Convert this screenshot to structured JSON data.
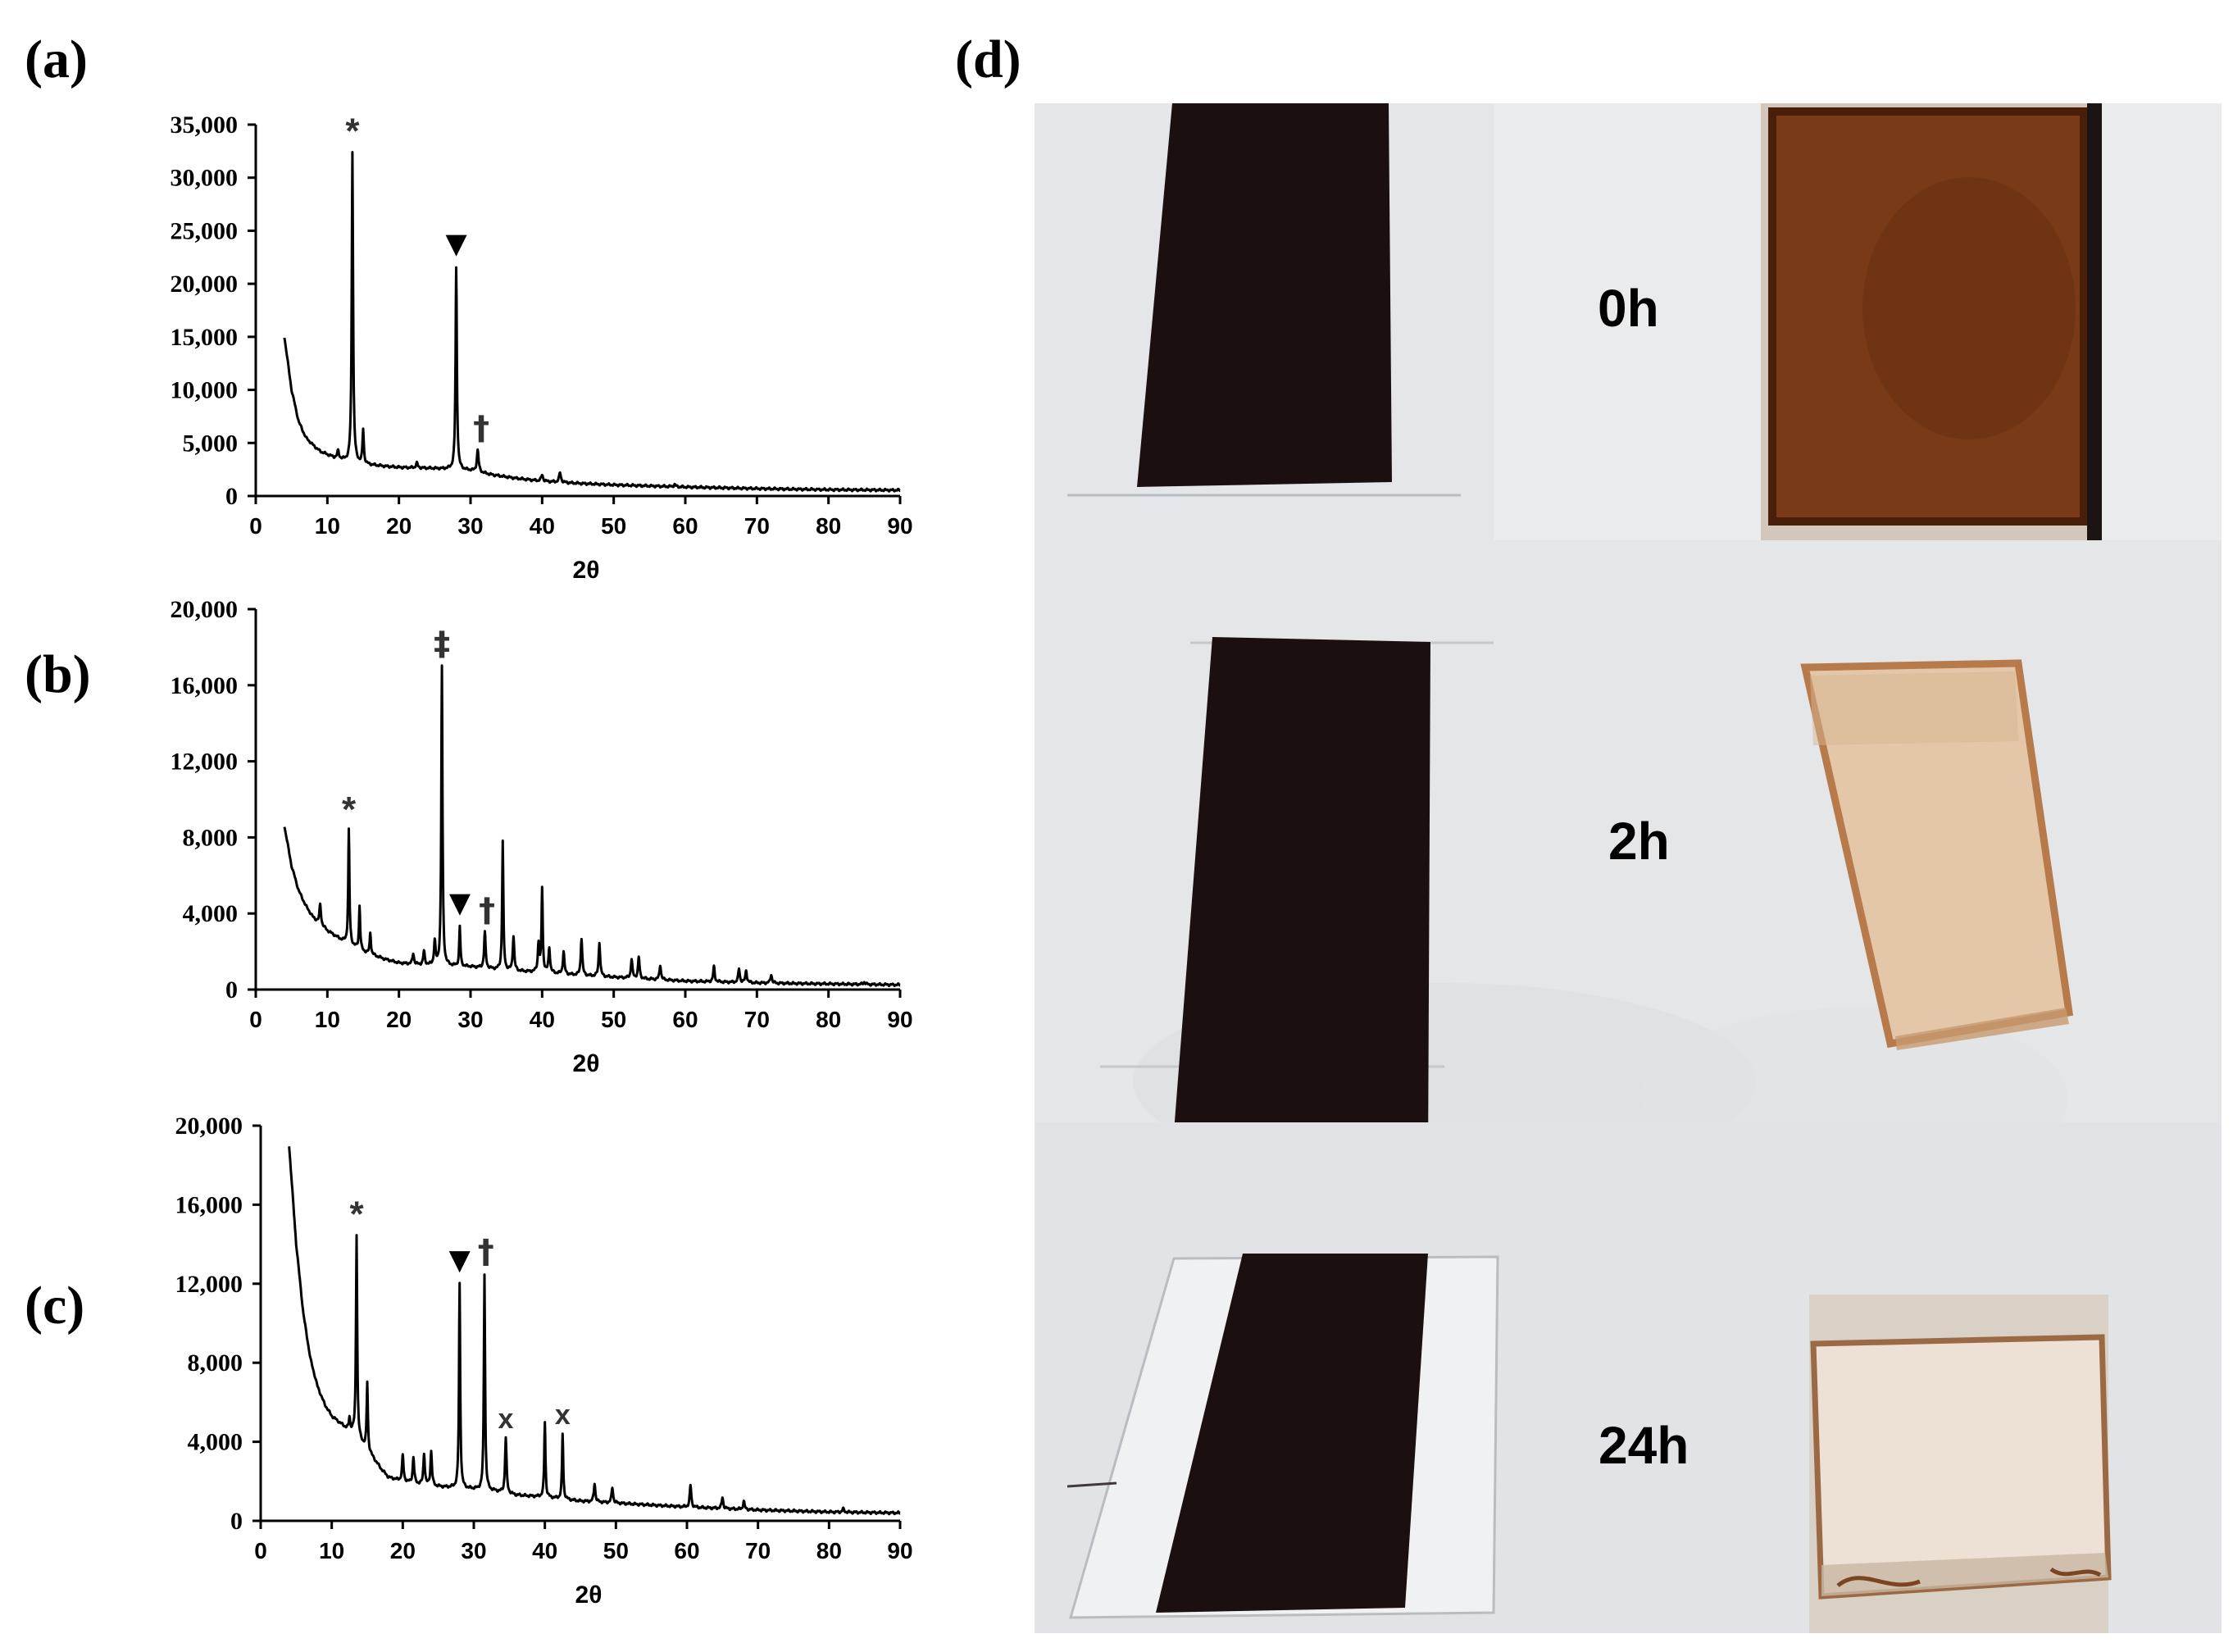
{
  "panel_labels": {
    "a": "(a)",
    "b": "(b)",
    "c": "(c)",
    "d": "(d)"
  },
  "chart_data": [
    {
      "id": "a",
      "type": "line",
      "xlabel": "2θ",
      "ylabel": "",
      "xlim": [
        0,
        90
      ],
      "ylim": [
        0,
        35000
      ],
      "xticks": [
        "0",
        "10",
        "20",
        "30",
        "40",
        "50",
        "60",
        "70",
        "80",
        "90"
      ],
      "yticks": [
        "0",
        "5,000",
        "10,000",
        "15,000",
        "20,000",
        "25,000",
        "30,000",
        "35,000"
      ],
      "yticks_values": [
        0,
        5000,
        10000,
        15000,
        20000,
        25000,
        30000,
        35000
      ],
      "grid": false,
      "line_color": "#000000",
      "baseline": [
        [
          4,
          15000
        ],
        [
          5,
          10000
        ],
        [
          6,
          7000
        ],
        [
          7,
          5500
        ],
        [
          8,
          4800
        ],
        [
          9,
          4200
        ],
        [
          10,
          3900
        ],
        [
          11,
          3600
        ],
        [
          12,
          3400
        ],
        [
          13,
          3200
        ],
        [
          15,
          3000
        ],
        [
          18,
          2800
        ],
        [
          20,
          2700
        ],
        [
          25,
          2600
        ],
        [
          28,
          2500
        ],
        [
          30,
          2400
        ],
        [
          33,
          2000
        ],
        [
          36,
          1700
        ],
        [
          40,
          1400
        ],
        [
          45,
          1200
        ],
        [
          50,
          1050
        ],
        [
          55,
          950
        ],
        [
          60,
          850
        ],
        [
          70,
          700
        ],
        [
          80,
          600
        ],
        [
          90,
          550
        ]
      ],
      "peaks": [
        [
          11.5,
          4200,
          0.3
        ],
        [
          13.5,
          32500,
          0.22
        ],
        [
          15,
          6200,
          0.22
        ],
        [
          22.5,
          3100,
          0.3
        ],
        [
          28,
          21500,
          0.22
        ],
        [
          31,
          4300,
          0.3
        ],
        [
          40,
          2000,
          0.3
        ],
        [
          42.5,
          2200,
          0.3
        ],
        [
          58.5,
          1100,
          0.3
        ]
      ],
      "annotations": [
        {
          "text": "*",
          "x": 13.5,
          "y": 32500
        },
        {
          "text": "▼",
          "x": 28,
          "y": 21500
        },
        {
          "text": "†",
          "x": 31.5,
          "y": 4300
        }
      ]
    },
    {
      "id": "b",
      "type": "line",
      "xlabel": "2θ",
      "ylabel": "",
      "xlim": [
        0,
        90
      ],
      "ylim": [
        0,
        20000
      ],
      "xticks": [
        "0",
        "10",
        "20",
        "30",
        "40",
        "50",
        "60",
        "70",
        "80",
        "90"
      ],
      "yticks": [
        "0",
        "4,000",
        "8,000",
        "12,000",
        "16,000",
        "20,000"
      ],
      "yticks_values": [
        0,
        4000,
        8000,
        12000,
        16000,
        20000
      ],
      "grid": false,
      "line_color": "#000000",
      "baseline": [
        [
          4,
          8600
        ],
        [
          5,
          6500
        ],
        [
          6,
          5200
        ],
        [
          7,
          4400
        ],
        [
          8,
          3800
        ],
        [
          10,
          3100
        ],
        [
          12,
          2600
        ],
        [
          15,
          2000
        ],
        [
          18,
          1600
        ],
        [
          20,
          1400
        ],
        [
          23,
          1300
        ],
        [
          26,
          1250
        ],
        [
          30,
          1200
        ],
        [
          35,
          1000
        ],
        [
          40,
          900
        ],
        [
          45,
          750
        ],
        [
          50,
          650
        ],
        [
          55,
          550
        ],
        [
          60,
          450
        ],
        [
          70,
          350
        ],
        [
          80,
          300
        ],
        [
          90,
          250
        ]
      ],
      "peaks": [
        [
          9,
          4500,
          0.25
        ],
        [
          13,
          8400,
          0.2
        ],
        [
          14.5,
          4400,
          0.2
        ],
        [
          16,
          3000,
          0.2
        ],
        [
          22,
          1900,
          0.25
        ],
        [
          23.5,
          2000,
          0.25
        ],
        [
          25,
          2500,
          0.25
        ],
        [
          26,
          17000,
          0.2
        ],
        [
          28.5,
          3300,
          0.2
        ],
        [
          32,
          3000,
          0.25
        ],
        [
          34.5,
          7800,
          0.2
        ],
        [
          36,
          2800,
          0.25
        ],
        [
          39.5,
          2400,
          0.25
        ],
        [
          40,
          5300,
          0.2
        ],
        [
          41,
          2200,
          0.25
        ],
        [
          43,
          2000,
          0.25
        ],
        [
          45.5,
          2700,
          0.25
        ],
        [
          48,
          2500,
          0.25
        ],
        [
          52.5,
          1600,
          0.25
        ],
        [
          53.5,
          1700,
          0.25
        ],
        [
          56.5,
          1300,
          0.25
        ],
        [
          64,
          1200,
          0.25
        ],
        [
          67.5,
          1100,
          0.25
        ],
        [
          68.5,
          1000,
          0.25
        ],
        [
          72,
          800,
          0.25
        ],
        [
          85,
          400,
          0.3
        ]
      ],
      "annotations": [
        {
          "text": "‡",
          "x": 26,
          "y": 17000
        },
        {
          "text": "*",
          "x": 13,
          "y": 8400
        },
        {
          "text": "▼",
          "x": 28.5,
          "y": 3300
        },
        {
          "text": "†",
          "x": 32.3,
          "y": 3000
        }
      ]
    },
    {
      "id": "c",
      "type": "line",
      "xlabel": "2θ",
      "ylabel": "",
      "xlim": [
        0,
        90
      ],
      "ylim": [
        0,
        20000
      ],
      "xticks": [
        "0",
        "10",
        "20",
        "30",
        "40",
        "50",
        "60",
        "70",
        "80",
        "90"
      ],
      "yticks": [
        "0",
        "4,000",
        "8,000",
        "12,000",
        "16,000",
        "20,000"
      ],
      "yticks_values": [
        0,
        4000,
        8000,
        12000,
        16000,
        20000
      ],
      "grid": false,
      "line_color": "#000000",
      "baseline": [
        [
          4,
          19000
        ],
        [
          5,
          14000
        ],
        [
          6,
          10500
        ],
        [
          7,
          8200
        ],
        [
          8,
          6800
        ],
        [
          9,
          5900
        ],
        [
          10,
          5300
        ],
        [
          12,
          4700
        ],
        [
          13,
          4500
        ],
        [
          15,
          3600
        ],
        [
          17,
          2600
        ],
        [
          18,
          2200
        ],
        [
          20,
          2000
        ],
        [
          23,
          1800
        ],
        [
          26,
          1700
        ],
        [
          30,
          1600
        ],
        [
          33,
          1500
        ],
        [
          36,
          1300
        ],
        [
          40,
          1200
        ],
        [
          45,
          1000
        ],
        [
          50,
          900
        ],
        [
          55,
          800
        ],
        [
          60,
          700
        ],
        [
          70,
          550
        ],
        [
          80,
          450
        ],
        [
          90,
          400
        ]
      ],
      "peaks": [
        [
          12.5,
          5200,
          0.2
        ],
        [
          13.5,
          14500,
          0.2
        ],
        [
          15,
          7000,
          0.2
        ],
        [
          20,
          3300,
          0.25
        ],
        [
          21.5,
          3200,
          0.25
        ],
        [
          23,
          3400,
          0.25
        ],
        [
          24,
          3500,
          0.25
        ],
        [
          28,
          12000,
          0.2
        ],
        [
          31.5,
          12500,
          0.2
        ],
        [
          34.5,
          4200,
          0.25
        ],
        [
          40,
          5000,
          0.2
        ],
        [
          42.5,
          4400,
          0.2
        ],
        [
          47,
          1900,
          0.25
        ],
        [
          49.5,
          1700,
          0.25
        ],
        [
          60.5,
          1800,
          0.25
        ],
        [
          65,
          1200,
          0.25
        ],
        [
          68,
          1000,
          0.25
        ],
        [
          82,
          600,
          0.3
        ]
      ],
      "annotations": [
        {
          "text": "*",
          "x": 13.5,
          "y": 14500
        },
        {
          "text": "▼",
          "x": 28,
          "y": 12000
        },
        {
          "text": "†",
          "x": 31.7,
          "y": 12500
        },
        {
          "text": "x",
          "x": 34.5,
          "y": 4200
        },
        {
          "text": "x",
          "x": 42.5,
          "y": 4400
        }
      ]
    }
  ],
  "photos": [
    {
      "time": "0h",
      "sample_color": "#7a3a18",
      "sample_edge": "#4a1f0a"
    },
    {
      "time": "2h",
      "sample_color": "#e3c7a8",
      "sample_edge": "#b77a4a"
    },
    {
      "time": "24h",
      "sample_color": "#ece1d4",
      "sample_edge": "#9b6a44"
    }
  ]
}
